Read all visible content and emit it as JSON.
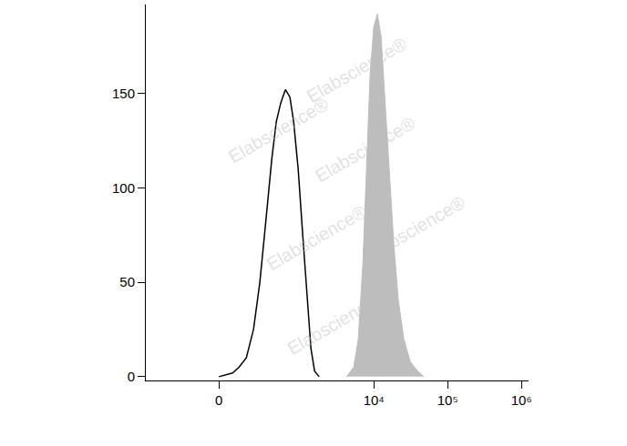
{
  "chart_data": {
    "type": "histogram",
    "xlim": [
      -770,
      1250000
    ],
    "xticks": [
      0,
      {
        "value": 10000,
        "label": "10⁴"
      },
      {
        "value": 100000,
        "label": "10⁵"
      },
      {
        "value": 1000000,
        "label": "10⁶"
      }
    ],
    "ylim": [
      -2,
      197
    ],
    "yticks": [
      0,
      50,
      100,
      150
    ],
    "grid": false,
    "annotations": [
      "Elabscience®",
      "Elabscience®",
      "Elabscience®",
      "Elabscience®",
      "Elabscience®",
      "Elabscience®"
    ],
    "series": [
      {
        "type": "line",
        "color": "#000000",
        "x": [
          0,
          70,
          106,
          153,
          207,
          263,
          331,
          398,
          463,
          537,
          623,
          720,
          811,
          936,
          1081,
          1248,
          1399,
          1569,
          1811
        ],
        "values": [
          0,
          2,
          5,
          10,
          25,
          50,
          85,
          115,
          135,
          145,
          152,
          148,
          135,
          110,
          75,
          40,
          15,
          3,
          0
        ]
      },
      {
        "type": "area",
        "color": "#bdbdbd",
        "x": [
          4253,
          5340,
          6155,
          7100,
          7950,
          8905,
          9970,
          11180,
          12530,
          14040,
          16190,
          18650,
          21510,
          25490,
          31120,
          39030,
          47640
        ],
        "values": [
          0,
          5,
          20,
          60,
          110,
          160,
          185,
          192,
          180,
          150,
          110,
          70,
          40,
          20,
          8,
          3,
          0
        ]
      }
    ]
  }
}
